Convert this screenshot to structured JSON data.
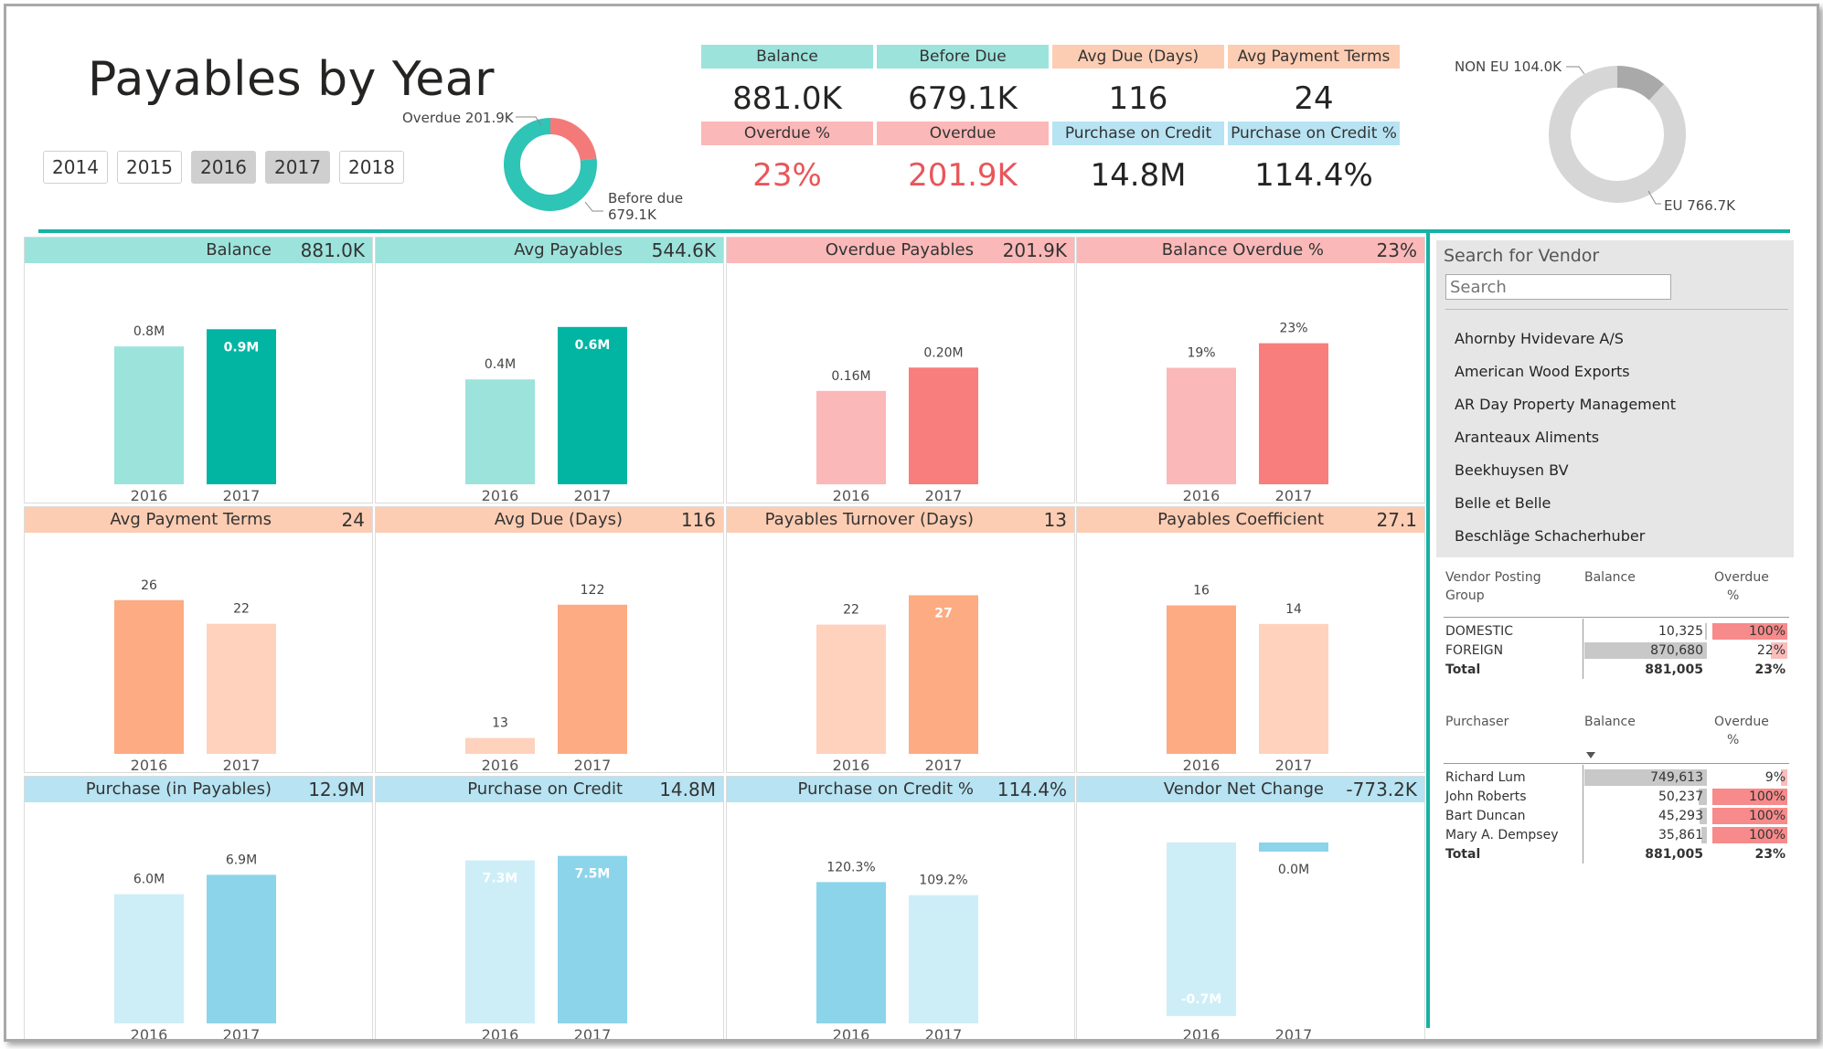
{
  "title": "Payables by Year",
  "years": [
    {
      "label": "2014",
      "selected": false
    },
    {
      "label": "2015",
      "selected": false
    },
    {
      "label": "2016",
      "selected": true
    },
    {
      "label": "2017",
      "selected": true
    },
    {
      "label": "2018",
      "selected": false
    }
  ],
  "overdue_donut": {
    "overdue_label": "Overdue 201.9K",
    "before_due_label_1": "Before due",
    "before_due_label_2": "679.1K",
    "overdue_value": 201.9,
    "before_due_value": 679.1,
    "colors": {
      "overdue": "#f47a7a",
      "before_due": "#2ec4b6"
    }
  },
  "kpis": [
    {
      "label": "Balance",
      "value": "881.0K",
      "header_color": "#9ce3dc",
      "value_red": false
    },
    {
      "label": "Before Due",
      "value": "679.1K",
      "header_color": "#9ce3dc",
      "value_red": false
    },
    {
      "label": "Avg Due (Days)",
      "value": "116",
      "header_color": "#fdcdb3",
      "value_red": false
    },
    {
      "label": "Avg Payment Terms",
      "value": "24",
      "header_color": "#fdcdb3",
      "value_red": false
    },
    {
      "label": "Overdue %",
      "value": "23%",
      "header_color": "#fbb8b8",
      "value_red": true
    },
    {
      "label": "Overdue",
      "value": "201.9K",
      "header_color": "#fbb8b8",
      "value_red": true
    },
    {
      "label": "Purchase on Credit",
      "value": "14.8M",
      "header_color": "#b7e3f2",
      "value_red": false
    },
    {
      "label": "Purchase on Credit %",
      "value": "114.4%",
      "header_color": "#b7e3f2",
      "value_red": false
    }
  ],
  "region_donut": {
    "non_eu_label": "NON EU 104.0K",
    "eu_label": "EU 766.7K",
    "non_eu_value": 104.0,
    "eu_value": 766.7,
    "colors": {
      "non_eu": "#a9a9a9",
      "eu": "#d6d6d6"
    }
  },
  "cards": [
    {
      "title": "Balance",
      "value": "881.0K",
      "header_color": "#9ce3dc",
      "color_2016": "#9ce3dc",
      "color_2017": "#02b5a3",
      "chart_data": {
        "type": "bar",
        "categories": [
          "2016",
          "2017"
        ],
        "values": [
          0.8,
          0.9
        ],
        "data_labels": [
          "0.8M",
          "0.9M"
        ],
        "label_inside": [
          false,
          true
        ],
        "ylim": [
          0,
          1.05
        ]
      }
    },
    {
      "title": "Avg Payables",
      "value": "544.6K",
      "header_color": "#9ce3dc",
      "color_2016": "#9ce3dc",
      "color_2017": "#02b5a3",
      "chart_data": {
        "type": "bar",
        "categories": [
          "2016",
          "2017"
        ],
        "values": [
          0.4,
          0.6
        ],
        "data_labels": [
          "0.4M",
          "0.6M"
        ],
        "label_inside": [
          false,
          true
        ],
        "ylim": [
          0,
          0.69
        ]
      }
    },
    {
      "title": "Overdue Payables",
      "value": "201.9K",
      "header_color": "#fbb8b8",
      "color_2016": "#fbb8b8",
      "color_2017": "#f87d7d",
      "chart_data": {
        "type": "bar",
        "categories": [
          "2016",
          "2017"
        ],
        "values": [
          0.16,
          0.2
        ],
        "data_labels": [
          "0.16M",
          "0.20M"
        ],
        "label_inside": [
          false,
          false
        ],
        "ylim": [
          0,
          0.31
        ]
      }
    },
    {
      "title": "Balance Overdue %",
      "value": "23%",
      "header_color": "#fbb8b8",
      "color_2016": "#fbb8b8",
      "color_2017": "#f87d7d",
      "chart_data": {
        "type": "bar",
        "categories": [
          "2016",
          "2017"
        ],
        "values": [
          19,
          23
        ],
        "data_labels": [
          "19%",
          "23%"
        ],
        "label_inside": [
          false,
          false
        ],
        "ylim": [
          0,
          29.5
        ]
      }
    },
    {
      "title": "Avg Payment Terms",
      "value": "24",
      "header_color": "#fdcdb3",
      "color_2016": "#fdab82",
      "color_2017": "#fed2bd",
      "chart_data": {
        "type": "bar",
        "categories": [
          "2016",
          "2017"
        ],
        "values": [
          26,
          22
        ],
        "data_labels": [
          "26",
          "22"
        ],
        "label_inside": [
          false,
          false
        ],
        "ylim": [
          0,
          30.6
        ]
      }
    },
    {
      "title": "Avg Due (Days)",
      "value": "116",
      "header_color": "#fdcdb3",
      "color_2016": "#fed2bd",
      "color_2017": "#fdab82",
      "chart_data": {
        "type": "bar",
        "categories": [
          "2016",
          "2017"
        ],
        "values": [
          13,
          122
        ],
        "data_labels": [
          "13",
          "122"
        ],
        "label_inside": [
          false,
          false
        ],
        "ylim": [
          0,
          148
        ]
      }
    },
    {
      "title": "Payables Turnover (Days)",
      "value": "13",
      "header_color": "#fdcdb3",
      "color_2016": "#fed2bd",
      "color_2017": "#fdab82",
      "chart_data": {
        "type": "bar",
        "categories": [
          "2016",
          "2017"
        ],
        "values": [
          22,
          27
        ],
        "data_labels": [
          "22",
          "27"
        ],
        "label_inside": [
          false,
          true
        ],
        "ylim": [
          0,
          30.8
        ]
      }
    },
    {
      "title": "Payables Coefficient",
      "value": "27.1",
      "header_color": "#fdcdb3",
      "color_2016": "#fdab82",
      "color_2017": "#fed2bd",
      "chart_data": {
        "type": "bar",
        "categories": [
          "2016",
          "2017"
        ],
        "values": [
          16,
          14
        ],
        "data_labels": [
          "16",
          "14"
        ],
        "label_inside": [
          false,
          false
        ],
        "ylim": [
          0,
          19.5
        ]
      }
    },
    {
      "title": "Purchase (in Payables)",
      "value": "12.9M",
      "header_color": "#b7e3f2",
      "color_2016": "#cdeef7",
      "color_2017": "#8cd4ea",
      "chart_data": {
        "type": "bar",
        "categories": [
          "2016",
          "2017"
        ],
        "values": [
          6.0,
          6.9
        ],
        "data_labels": [
          "6.0M",
          "6.9M"
        ],
        "label_inside": [
          false,
          false
        ],
        "ylim": [
          0,
          8.4
        ]
      }
    },
    {
      "title": "Purchase on Credit",
      "value": "14.8M",
      "header_color": "#b7e3f2",
      "color_2016": "#cdeef7",
      "color_2017": "#8cd4ea",
      "chart_data": {
        "type": "bar",
        "categories": [
          "2016",
          "2017"
        ],
        "values": [
          7.3,
          7.5
        ],
        "data_labels": [
          "7.3M",
          "7.5M"
        ],
        "label_inside": [
          true,
          true
        ],
        "ylim": [
          0,
          8.1
        ]
      }
    },
    {
      "title": "Purchase on Credit %",
      "value": "114.4%",
      "header_color": "#b7e3f2",
      "color_2016": "#8cd4ea",
      "color_2017": "#cdeef7",
      "chart_data": {
        "type": "bar",
        "categories": [
          "2016",
          "2017"
        ],
        "values": [
          120.3,
          109.2
        ],
        "data_labels": [
          "120.3%",
          "109.2%"
        ],
        "label_inside": [
          false,
          false
        ],
        "ylim": [
          0,
          154
        ]
      }
    },
    {
      "title": "Vendor Net Change",
      "value": "-773.2K",
      "header_color": "#b7e3f2",
      "color_2016": "#cdeef7",
      "color_2017": "#8cd4ea",
      "chart_data": {
        "type": "bar",
        "categories": [
          "2016",
          "2017"
        ],
        "values": [
          -0.7,
          0.0
        ],
        "data_labels": [
          "-0.7M",
          "0.0M"
        ],
        "label_inside": [
          true,
          false
        ],
        "ylim": [
          -0.73,
          0
        ]
      }
    }
  ],
  "search": {
    "label": "Search for Vendor",
    "placeholder": "Search",
    "vendors": [
      "Ahornby Hvidevare A/S",
      "American Wood Exports",
      "AR Day Property Management",
      "Aranteaux Aliments",
      "Beekhuysen BV",
      "Belle et Belle",
      "Beschläge Schacherhuber"
    ]
  },
  "posting_group_table": {
    "headers": {
      "col1_line1": "Vendor Posting",
      "col1_line2": "Group",
      "col2": "Balance",
      "col3_line1": "Overdue",
      "col3_line2": "%"
    },
    "rows": [
      {
        "name": "DOMESTIC",
        "balance": "10,325",
        "balance_value": 10325,
        "overdue": "100%",
        "overdue_value": 100
      },
      {
        "name": "FOREIGN",
        "balance": "870,680",
        "balance_value": 870680,
        "overdue": "22%",
        "overdue_value": 22
      }
    ],
    "total": {
      "name": "Total",
      "balance": "881,005",
      "overdue": "23%"
    }
  },
  "purchaser_table": {
    "headers": {
      "col1": "Purchaser",
      "col2": "Balance",
      "col3_line1": "Overdue",
      "col3_line2": "%"
    },
    "rows": [
      {
        "name": "Richard Lum",
        "balance": "749,613",
        "balance_value": 749613,
        "overdue": "9%",
        "overdue_value": 9
      },
      {
        "name": "John Roberts",
        "balance": "50,237",
        "balance_value": 50237,
        "overdue": "100%",
        "overdue_value": 100
      },
      {
        "name": "Bart Duncan",
        "balance": "45,293",
        "balance_value": 45293,
        "overdue": "100%",
        "overdue_value": 100
      },
      {
        "name": "Mary A. Dempsey",
        "balance": "35,861",
        "balance_value": 35861,
        "overdue": "100%",
        "overdue_value": 100
      }
    ],
    "total": {
      "name": "Total",
      "balance": "881,005",
      "overdue": "23%"
    }
  }
}
